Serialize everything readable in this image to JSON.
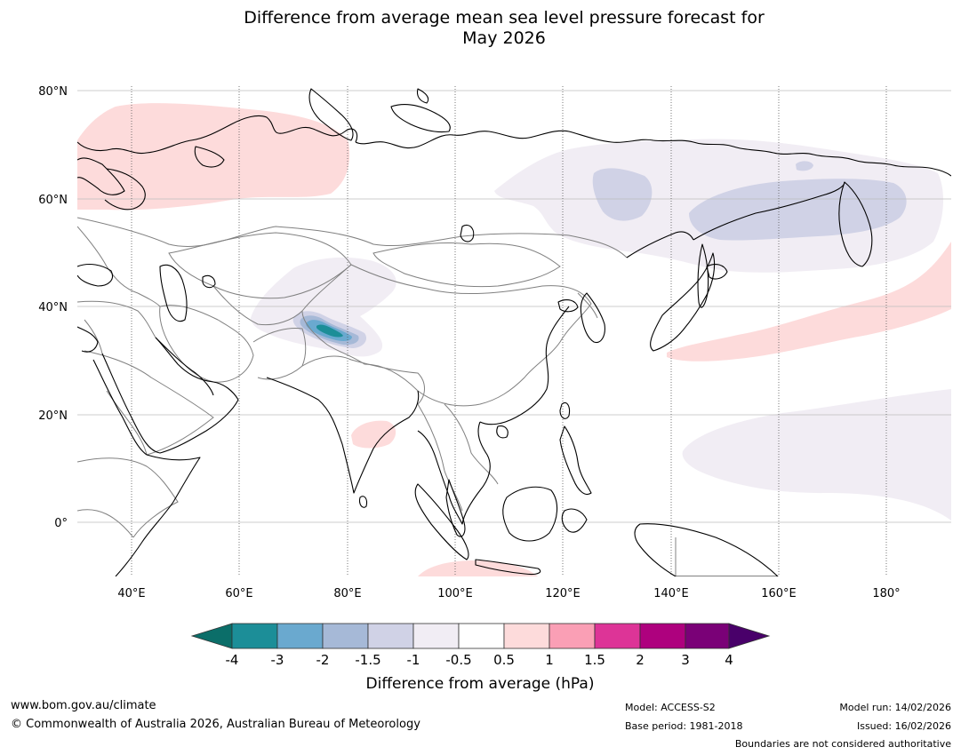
{
  "title": {
    "line1": "Difference from average mean sea level pressure forecast for",
    "line2": "May 2026"
  },
  "map": {
    "lat_labels": [
      "80°N",
      "60°N",
      "40°N",
      "20°N",
      "0°"
    ],
    "lon_labels": [
      "40°E",
      "60°E",
      "80°E",
      "100°E",
      "120°E",
      "140°E",
      "160°E",
      "180°"
    ],
    "colors": {
      "pos_05_1": "#fddbdb",
      "neg_05_1": "#f1edf4",
      "neg_1_15": "#d0d2e6",
      "neg_15_2": "#a6b9d7",
      "neg_2_3": "#6aa9cf",
      "neg_3_4": "#1c8e98",
      "coast": "#000000",
      "border": "#808080",
      "grid": "#bdbdbd"
    }
  },
  "colorbar": {
    "tick_labels": [
      "-4",
      "-3",
      "-2",
      "-1.5",
      "-1",
      "-0.5",
      "0.5",
      "1",
      "1.5",
      "2",
      "3",
      "4"
    ],
    "colors": [
      "#0b6e69",
      "#1c8e98",
      "#6aa9cf",
      "#a6b9d7",
      "#d0d2e6",
      "#f1edf4",
      "#ffffff",
      "#fddbdb",
      "#fa9fb5",
      "#dd3497",
      "#ae017e",
      "#7a0177",
      "#49006a"
    ],
    "label": "Difference from average (hPa)"
  },
  "footer": {
    "website": "www.bom.gov.au/climate",
    "copyright": "© Commonwealth of Australia 2026, Australian Bureau of Meteorology",
    "model": "Model: ACCESS-S2",
    "base_period": "Base period: 1981-2018",
    "model_run": "Model run: 14/02/2026",
    "issued": "Issued: 16/02/2026",
    "disclaimer": "Boundaries are not considered authoritative"
  }
}
